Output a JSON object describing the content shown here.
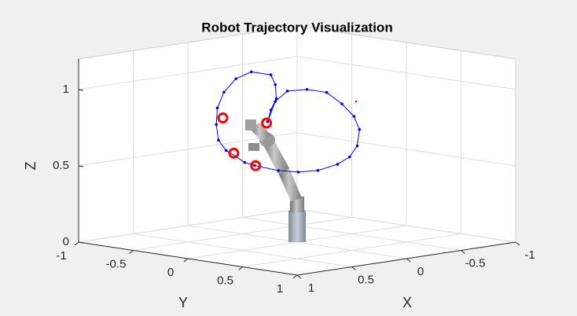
{
  "chart_data": {
    "type": "line3d",
    "title": "Robot Trajectory Visualization",
    "xlabel": "X",
    "ylabel": "Y",
    "zlabel": "Z",
    "xlim": [
      -1,
      1
    ],
    "ylim": [
      -1,
      1
    ],
    "zlim": [
      0,
      1.2
    ],
    "xticks": [
      -1,
      -0.5,
      0,
      0.5,
      1
    ],
    "yticks": [
      -1,
      -0.5,
      0,
      0.5,
      1
    ],
    "zticks": [
      0,
      0.5,
      1
    ],
    "grid": true,
    "series": [
      {
        "color": "#0000ff",
        "style": "line-dots",
        "x": [
          0,
          0,
          0,
          0,
          0,
          0,
          0,
          0,
          0,
          0,
          0,
          0,
          0,
          0,
          0,
          0,
          0,
          0,
          0,
          0,
          0,
          0,
          0,
          0,
          0,
          0,
          0,
          0,
          0
        ],
        "y": [
          -0.27,
          -0.24,
          -0.19,
          -0.2,
          -0.24,
          -0.42,
          -0.56,
          -0.67,
          -0.73,
          -0.74,
          -0.72,
          -0.65,
          -0.56,
          -0.48,
          -0.39,
          -0.17,
          0.01,
          0.19,
          0.37,
          0.48,
          0.55,
          0.57,
          0.52,
          0.41,
          0.27,
          0.09,
          -0.09,
          -0.2,
          -0.27
        ],
        "z": [
          0.76,
          0.84,
          0.92,
          1.01,
          1.07,
          1.07,
          1.01,
          0.91,
          0.8,
          0.69,
          0.59,
          0.53,
          0.5,
          0.47,
          0.46,
          0.45,
          0.46,
          0.49,
          0.55,
          0.61,
          0.69,
          0.8,
          0.88,
          0.95,
          1.01,
          1.01,
          0.98,
          0.9,
          0.76
        ]
      },
      {
        "color": "#ff0000",
        "style": "circles",
        "x": [
          0,
          0,
          0,
          0
        ],
        "y": [
          -0.68,
          -0.28,
          -0.58,
          -0.38
        ],
        "z": [
          0.74,
          0.75,
          0.52,
          0.46
        ]
      },
      {
        "color": "#ff0000",
        "style": "dot",
        "x": [
          0
        ],
        "y": [
          0.54
        ],
        "z": [
          0.98
        ]
      }
    ]
  }
}
